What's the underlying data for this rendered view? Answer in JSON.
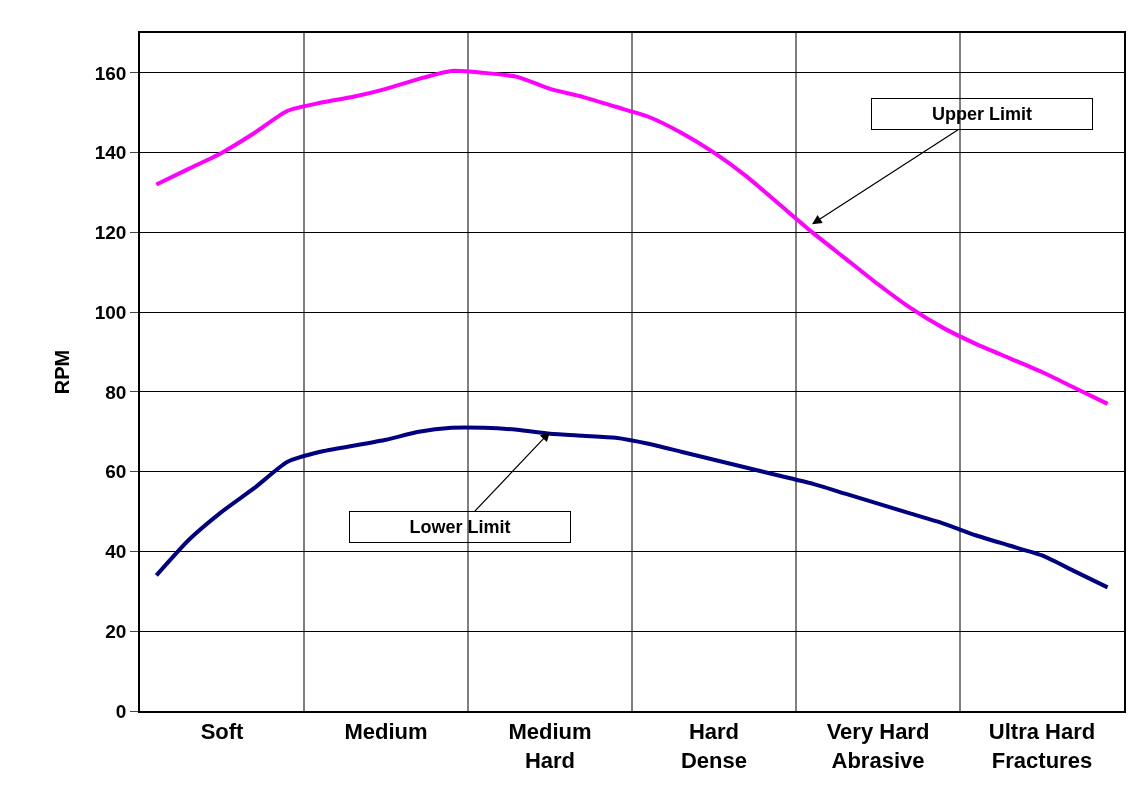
{
  "chart_data": {
    "type": "line",
    "ylabel": "RPM",
    "categories": [
      null,
      null,
      "Soft",
      null,
      null,
      null,
      null,
      "Medium",
      null,
      null,
      null,
      null,
      "Medium\nHard",
      null,
      null,
      null,
      null,
      "Hard\nDense",
      null,
      null,
      null,
      null,
      "Very Hard\nAbrasive",
      null,
      null,
      null,
      null,
      "Ultra Hard\nFractures",
      null,
      null
    ],
    "ylim": [
      0,
      170
    ],
    "yticks": [
      0,
      20,
      40,
      60,
      80,
      100,
      120,
      140,
      160
    ],
    "grid": true,
    "marker": "none",
    "line_style": "solid",
    "series": [
      {
        "color": "#ff00ff",
        "values": [
          132,
          136,
          140,
          145,
          150.5,
          152.5,
          154,
          156,
          158.5,
          160.5,
          160,
          159,
          156,
          154,
          151.5,
          149,
          145,
          140,
          134,
          127,
          120,
          113.5,
          107,
          101,
          96,
          92,
          88.5,
          85,
          81,
          77
        ]
      },
      {
        "color": "#000080",
        "values": [
          34,
          43,
          50,
          56,
          62.5,
          65,
          66.5,
          68,
          70,
          71,
          71,
          70.5,
          69.5,
          69,
          68.5,
          67,
          65,
          63,
          61,
          59,
          57,
          54.5,
          52,
          49.5,
          47,
          44,
          41.5,
          39,
          35,
          31
        ]
      }
    ],
    "annotations": [
      "Upper Limit",
      {
        "text": "Lower Limit",
        "x": "Medium\nHard",
        "y": 70
      }
    ]
  }
}
